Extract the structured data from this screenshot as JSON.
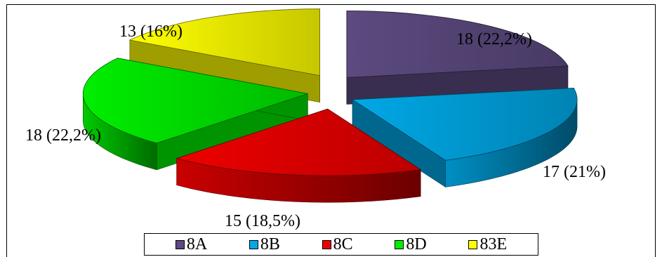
{
  "chart_data": {
    "type": "pie",
    "title": "",
    "categories": [
      "8A",
      "8B",
      "8C",
      "8D",
      "83E"
    ],
    "values": [
      18,
      17,
      15,
      18,
      13
    ],
    "data_labels": [
      "18 (22,2%)",
      "17  (21%)",
      "15 (18,5%)",
      "18 (22,2%)",
      "13  (16%)"
    ],
    "colors": [
      "#5c4a80",
      "#00a8e6",
      "#ee0000",
      "#00ee00",
      "#ffff00"
    ],
    "legend_position": "bottom",
    "style": "3d-exploded"
  }
}
